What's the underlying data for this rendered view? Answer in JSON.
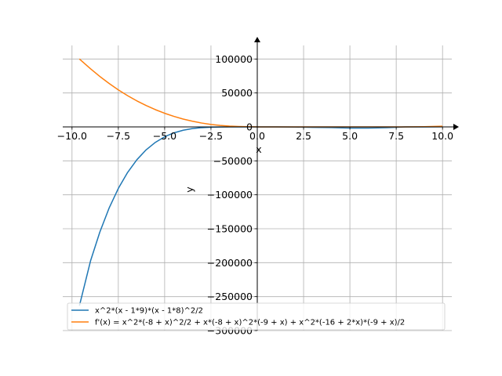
{
  "chart_data": {
    "type": "line",
    "title": "",
    "xlabel": "x",
    "ylabel": "y",
    "xlim": [
      -10.5,
      10.5
    ],
    "ylim": [
      -300000,
      120000
    ],
    "grid": true,
    "legend_position": "lower-left",
    "x_ticks": [
      -10,
      -7.5,
      -5,
      -2.5,
      0,
      2.5,
      5,
      7.5,
      10
    ],
    "x_tick_labels": [
      "−10.0",
      "−7.5",
      "−5.0",
      "−2.5",
      "0.0",
      "2.5",
      "5.0",
      "7.5",
      "10.0"
    ],
    "y_ticks": [
      -300000,
      -250000,
      -200000,
      -150000,
      -100000,
      -50000,
      0,
      50000,
      100000
    ],
    "y_tick_labels": [
      "−300000",
      "−250000",
      "−200000",
      "−150000",
      "−100000",
      "−50000",
      "0",
      "50000",
      "100000"
    ],
    "series": [
      {
        "name": "x^2*(x - 1*9)*(x - 1*8)^2/2",
        "color": "#1f77b4",
        "x": [
          -9.6,
          -9,
          -8.5,
          -8,
          -7.5,
          -7,
          -6.5,
          -6,
          -5.5,
          -5,
          -4.5,
          -4,
          -3.5,
          -3,
          -2.5,
          -2,
          -1.5,
          -1,
          -0.5,
          0,
          1,
          2,
          3,
          4,
          5,
          6,
          7,
          8,
          9,
          10
        ],
        "values": [
          -263370,
          -197316,
          -155072,
          -119680,
          -90633,
          -67081,
          -48381,
          -33804,
          -22750,
          -14560,
          -8786,
          -4888,
          -2475,
          -1080,
          -392,
          -104,
          -16,
          -4,
          -1,
          0,
          -32,
          -252,
          -675,
          -1000,
          -1800,
          -1800,
          -1225,
          0,
          0,
          200
        ]
      },
      {
        "name": "f'(x) = x^2*(-8 + x)^2/2 + x*(-8 + x)^2*(-9 + x) + x^2*(-16 + 2*x)*(-9 + x)/2",
        "color": "#ff7f0e",
        "x": [
          -9.6,
          -9,
          -8.5,
          -8,
          -7.5,
          -7,
          -6.5,
          -6,
          -5.5,
          -5,
          -4.5,
          -4,
          -3.5,
          -3,
          -2.5,
          -2,
          -1.5,
          -1,
          -0.5,
          0,
          1,
          2,
          3,
          4,
          5,
          6,
          7,
          8,
          9,
          10
        ],
        "values": [
          100000,
          85644,
          74349,
          64000,
          54569,
          46025,
          38336,
          31469,
          25391,
          20070,
          15473,
          11565,
          8315,
          5691,
          3661,
          2192,
          1171,
          640,
          220,
          0,
          42,
          12,
          -15,
          8,
          40,
          -20,
          -30,
          0,
          300,
          1000
        ]
      }
    ]
  }
}
